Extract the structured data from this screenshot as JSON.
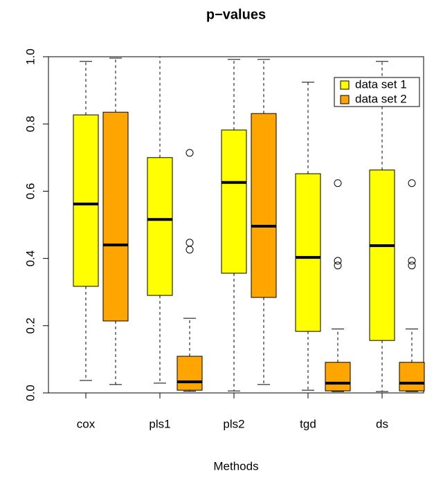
{
  "chart_data": {
    "type": "box",
    "title": "p−values",
    "x_label": "Methods",
    "categories": [
      "cox",
      "pls1",
      "pls2",
      "tgd",
      "ds"
    ],
    "ylim": [
      0,
      1
    ],
    "yticks": [
      {
        "value": 0,
        "label": "0.0"
      },
      {
        "value": 0.2,
        "label": "0.2"
      },
      {
        "value": 0.4,
        "label": "0.4"
      },
      {
        "value": 0.6,
        "label": "0.6"
      },
      {
        "value": 0.8,
        "label": "0.8"
      },
      {
        "value": 1,
        "label": "1.0"
      }
    ],
    "legend": "top-right",
    "series": [
      {
        "name": "data set 1",
        "color": "#ffff00",
        "boxes": [
          {
            "min": 0.037,
            "q1": 0.317,
            "median": 0.562,
            "q3": 0.827,
            "max": 0.986,
            "outliers": []
          },
          {
            "min": 0.029,
            "q1": 0.29,
            "median": 0.516,
            "q3": 0.7,
            "max": 1.0,
            "outliers": []
          },
          {
            "min": 0.006,
            "q1": 0.356,
            "median": 0.626,
            "q3": 0.782,
            "max": 0.992,
            "outliers": []
          },
          {
            "min": 0.008,
            "q1": 0.183,
            "median": 0.403,
            "q3": 0.652,
            "max": 0.924,
            "outliers": []
          },
          {
            "min": 0.004,
            "q1": 0.156,
            "median": 0.438,
            "q3": 0.663,
            "max": 0.986,
            "outliers": []
          }
        ]
      },
      {
        "name": "data set 2",
        "color": "#ffa500",
        "boxes": [
          {
            "min": 0.025,
            "q1": 0.214,
            "median": 0.44,
            "q3": 0.835,
            "max": 0.996,
            "outliers": []
          },
          {
            "min": 0.005,
            "q1": 0.008,
            "median": 0.033,
            "q3": 0.109,
            "max": 0.222,
            "outliers": [
              0.714,
              0.447,
              0.426
            ]
          },
          {
            "min": 0.025,
            "q1": 0.284,
            "median": 0.496,
            "q3": 0.831,
            "max": 0.992,
            "outliers": []
          },
          {
            "min": 0.004,
            "q1": 0.006,
            "median": 0.029,
            "q3": 0.091,
            "max": 0.19,
            "outliers": [
              0.624,
              0.393,
              0.379
            ]
          },
          {
            "min": 0.004,
            "q1": 0.006,
            "median": 0.029,
            "q3": 0.091,
            "max": 0.19,
            "outliers": [
              0.624,
              0.393,
              0.379
            ]
          }
        ]
      }
    ]
  }
}
